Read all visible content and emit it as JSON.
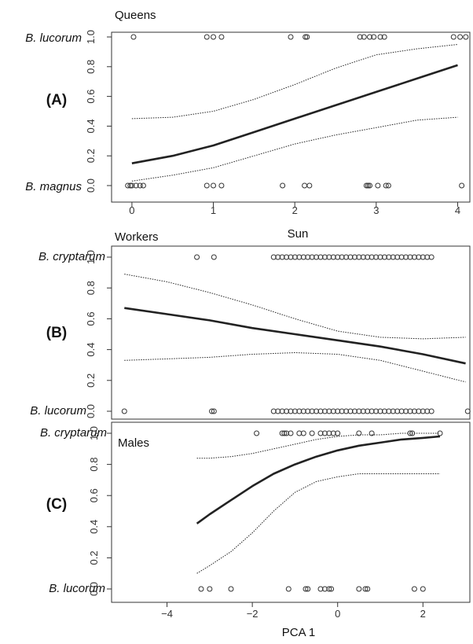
{
  "chart_data": [
    {
      "type": "line",
      "panel_label": "(A)",
      "title": "Queens",
      "xlabel": "Sun",
      "ylabel_top": "B. lucorum",
      "ylabel_bottom": "B. magnus",
      "xlim": [
        -0.25,
        4.15
      ],
      "ylim": [
        0,
        1
      ],
      "x_ticks": [
        0,
        1,
        2,
        3,
        4
      ],
      "x_tick_labels": [
        "0",
        "1",
        "2",
        "3",
        "4"
      ],
      "y_ticks": [
        0,
        0.2,
        0.4,
        0.6,
        0.8,
        1.0
      ],
      "y_tick_labels": [
        "0.0",
        "0.2",
        "0.4",
        "0.6",
        "0.8",
        "1.0"
      ],
      "fit_x": [
        0,
        0.5,
        1,
        1.5,
        2,
        2.5,
        3,
        3.5,
        4
      ],
      "fit": [
        0.15,
        0.2,
        0.27,
        0.36,
        0.45,
        0.54,
        0.63,
        0.72,
        0.81
      ],
      "upper": [
        0.45,
        0.46,
        0.5,
        0.58,
        0.68,
        0.79,
        0.88,
        0.92,
        0.95
      ],
      "lower": [
        0.03,
        0.07,
        0.12,
        0.2,
        0.28,
        0.34,
        0.39,
        0.44,
        0.46
      ],
      "obs_1": [
        0.02,
        0.92,
        1.0,
        1.1,
        1.95,
        2.13,
        2.15,
        2.8,
        2.85,
        2.92,
        2.97,
        3.05,
        3.1,
        3.95,
        4.03,
        4.1
      ],
      "obs_0": [
        -0.05,
        -0.02,
        0.0,
        0.05,
        0.1,
        0.14,
        0.92,
        1.0,
        1.1,
        1.85,
        2.12,
        2.18,
        2.88,
        2.9,
        2.92,
        3.02,
        3.12,
        3.15,
        4.05
      ]
    },
    {
      "type": "line",
      "panel_label": "(B)",
      "title": "Workers",
      "xlabel": "",
      "ylabel_top": "B. cryptarum",
      "ylabel_bottom": "B.  lucorum",
      "xlim": [
        -5.3,
        3.1
      ],
      "ylim": [
        0,
        1
      ],
      "y_ticks": [
        0,
        0.2,
        0.4,
        0.6,
        0.8,
        1.0
      ],
      "y_tick_labels": [
        "0.0",
        "0.2",
        "0.4",
        "0.6",
        "0.8",
        "1.0"
      ],
      "fit_x": [
        -5,
        -4,
        -3,
        -2,
        -1,
        0,
        1,
        2,
        3
      ],
      "fit": [
        0.67,
        0.63,
        0.59,
        0.54,
        0.5,
        0.46,
        0.42,
        0.37,
        0.31
      ],
      "upper": [
        0.89,
        0.84,
        0.77,
        0.69,
        0.6,
        0.52,
        0.48,
        0.47,
        0.48
      ],
      "lower": [
        0.33,
        0.34,
        0.35,
        0.37,
        0.38,
        0.37,
        0.33,
        0.26,
        0.19
      ],
      "obs_1": [
        -3.3,
        -2.9,
        -1.5,
        -1.4,
        -1.3,
        -1.2,
        -1.1,
        -1.0,
        -0.9,
        -0.8,
        -0.7,
        -0.6,
        -0.5,
        -0.4,
        -0.3,
        -0.2,
        -0.1,
        0.0,
        0.1,
        0.2,
        0.3,
        0.4,
        0.5,
        0.6,
        0.7,
        0.8,
        0.9,
        1.0,
        1.1,
        1.2,
        1.3,
        1.4,
        1.5,
        1.6,
        1.7,
        1.8,
        1.9,
        2.0,
        2.1,
        2.2
      ],
      "obs_0": [
        -5.0,
        -2.95,
        -2.9,
        -1.5,
        -1.4,
        -1.3,
        -1.2,
        -1.1,
        -1.0,
        -0.9,
        -0.8,
        -0.7,
        -0.6,
        -0.5,
        -0.4,
        -0.3,
        -0.2,
        -0.1,
        0.0,
        0.1,
        0.2,
        0.3,
        0.4,
        0.5,
        0.6,
        0.7,
        0.8,
        0.9,
        1.0,
        1.1,
        1.2,
        1.3,
        1.4,
        1.5,
        1.6,
        1.7,
        1.8,
        1.9,
        2.0,
        2.1,
        2.2,
        3.05
      ]
    },
    {
      "type": "line",
      "panel_label": "(C)",
      "title": "Males",
      "xlabel": "PCA 1",
      "ylabel_top": "B. cryptarum",
      "ylabel_bottom": "B. lucorum",
      "xlim": [
        -5.3,
        3.1
      ],
      "ylim": [
        0,
        1
      ],
      "x_ticks": [
        -4,
        -2,
        0,
        2
      ],
      "x_tick_labels": [
        "−4",
        "−2",
        "0",
        "2"
      ],
      "y_ticks": [
        0,
        0.2,
        0.4,
        0.6,
        0.8,
        1.0
      ],
      "y_tick_labels": [
        "0.0",
        "0.2",
        "0.4",
        "0.6",
        "0.8",
        "1.0"
      ],
      "fit_x": [
        -3.3,
        -3.0,
        -2.5,
        -2.0,
        -1.5,
        -1.0,
        -0.5,
        0.0,
        0.5,
        1.0,
        1.5,
        2.0,
        2.4
      ],
      "fit": [
        0.42,
        0.48,
        0.57,
        0.66,
        0.74,
        0.8,
        0.85,
        0.89,
        0.92,
        0.94,
        0.96,
        0.97,
        0.98
      ],
      "upper": [
        0.84,
        0.84,
        0.85,
        0.87,
        0.9,
        0.93,
        0.96,
        0.98,
        0.99,
        0.99,
        1.0,
        1.0,
        1.0
      ],
      "lower": [
        0.1,
        0.15,
        0.24,
        0.36,
        0.5,
        0.62,
        0.69,
        0.72,
        0.74,
        0.74,
        0.74,
        0.74,
        0.74
      ],
      "obs_1": [
        -1.9,
        -1.3,
        -1.25,
        -1.2,
        -1.1,
        -0.9,
        -0.8,
        -0.6,
        -0.4,
        -0.3,
        -0.2,
        -0.1,
        0.0,
        0.5,
        0.8,
        1.7,
        1.75,
        2.4
      ],
      "obs_0": [
        -3.2,
        -3.0,
        -2.5,
        -1.15,
        -0.75,
        -0.7,
        -0.4,
        -0.3,
        -0.2,
        -0.15,
        0.5,
        0.65,
        0.7,
        1.8,
        2.0
      ]
    }
  ]
}
